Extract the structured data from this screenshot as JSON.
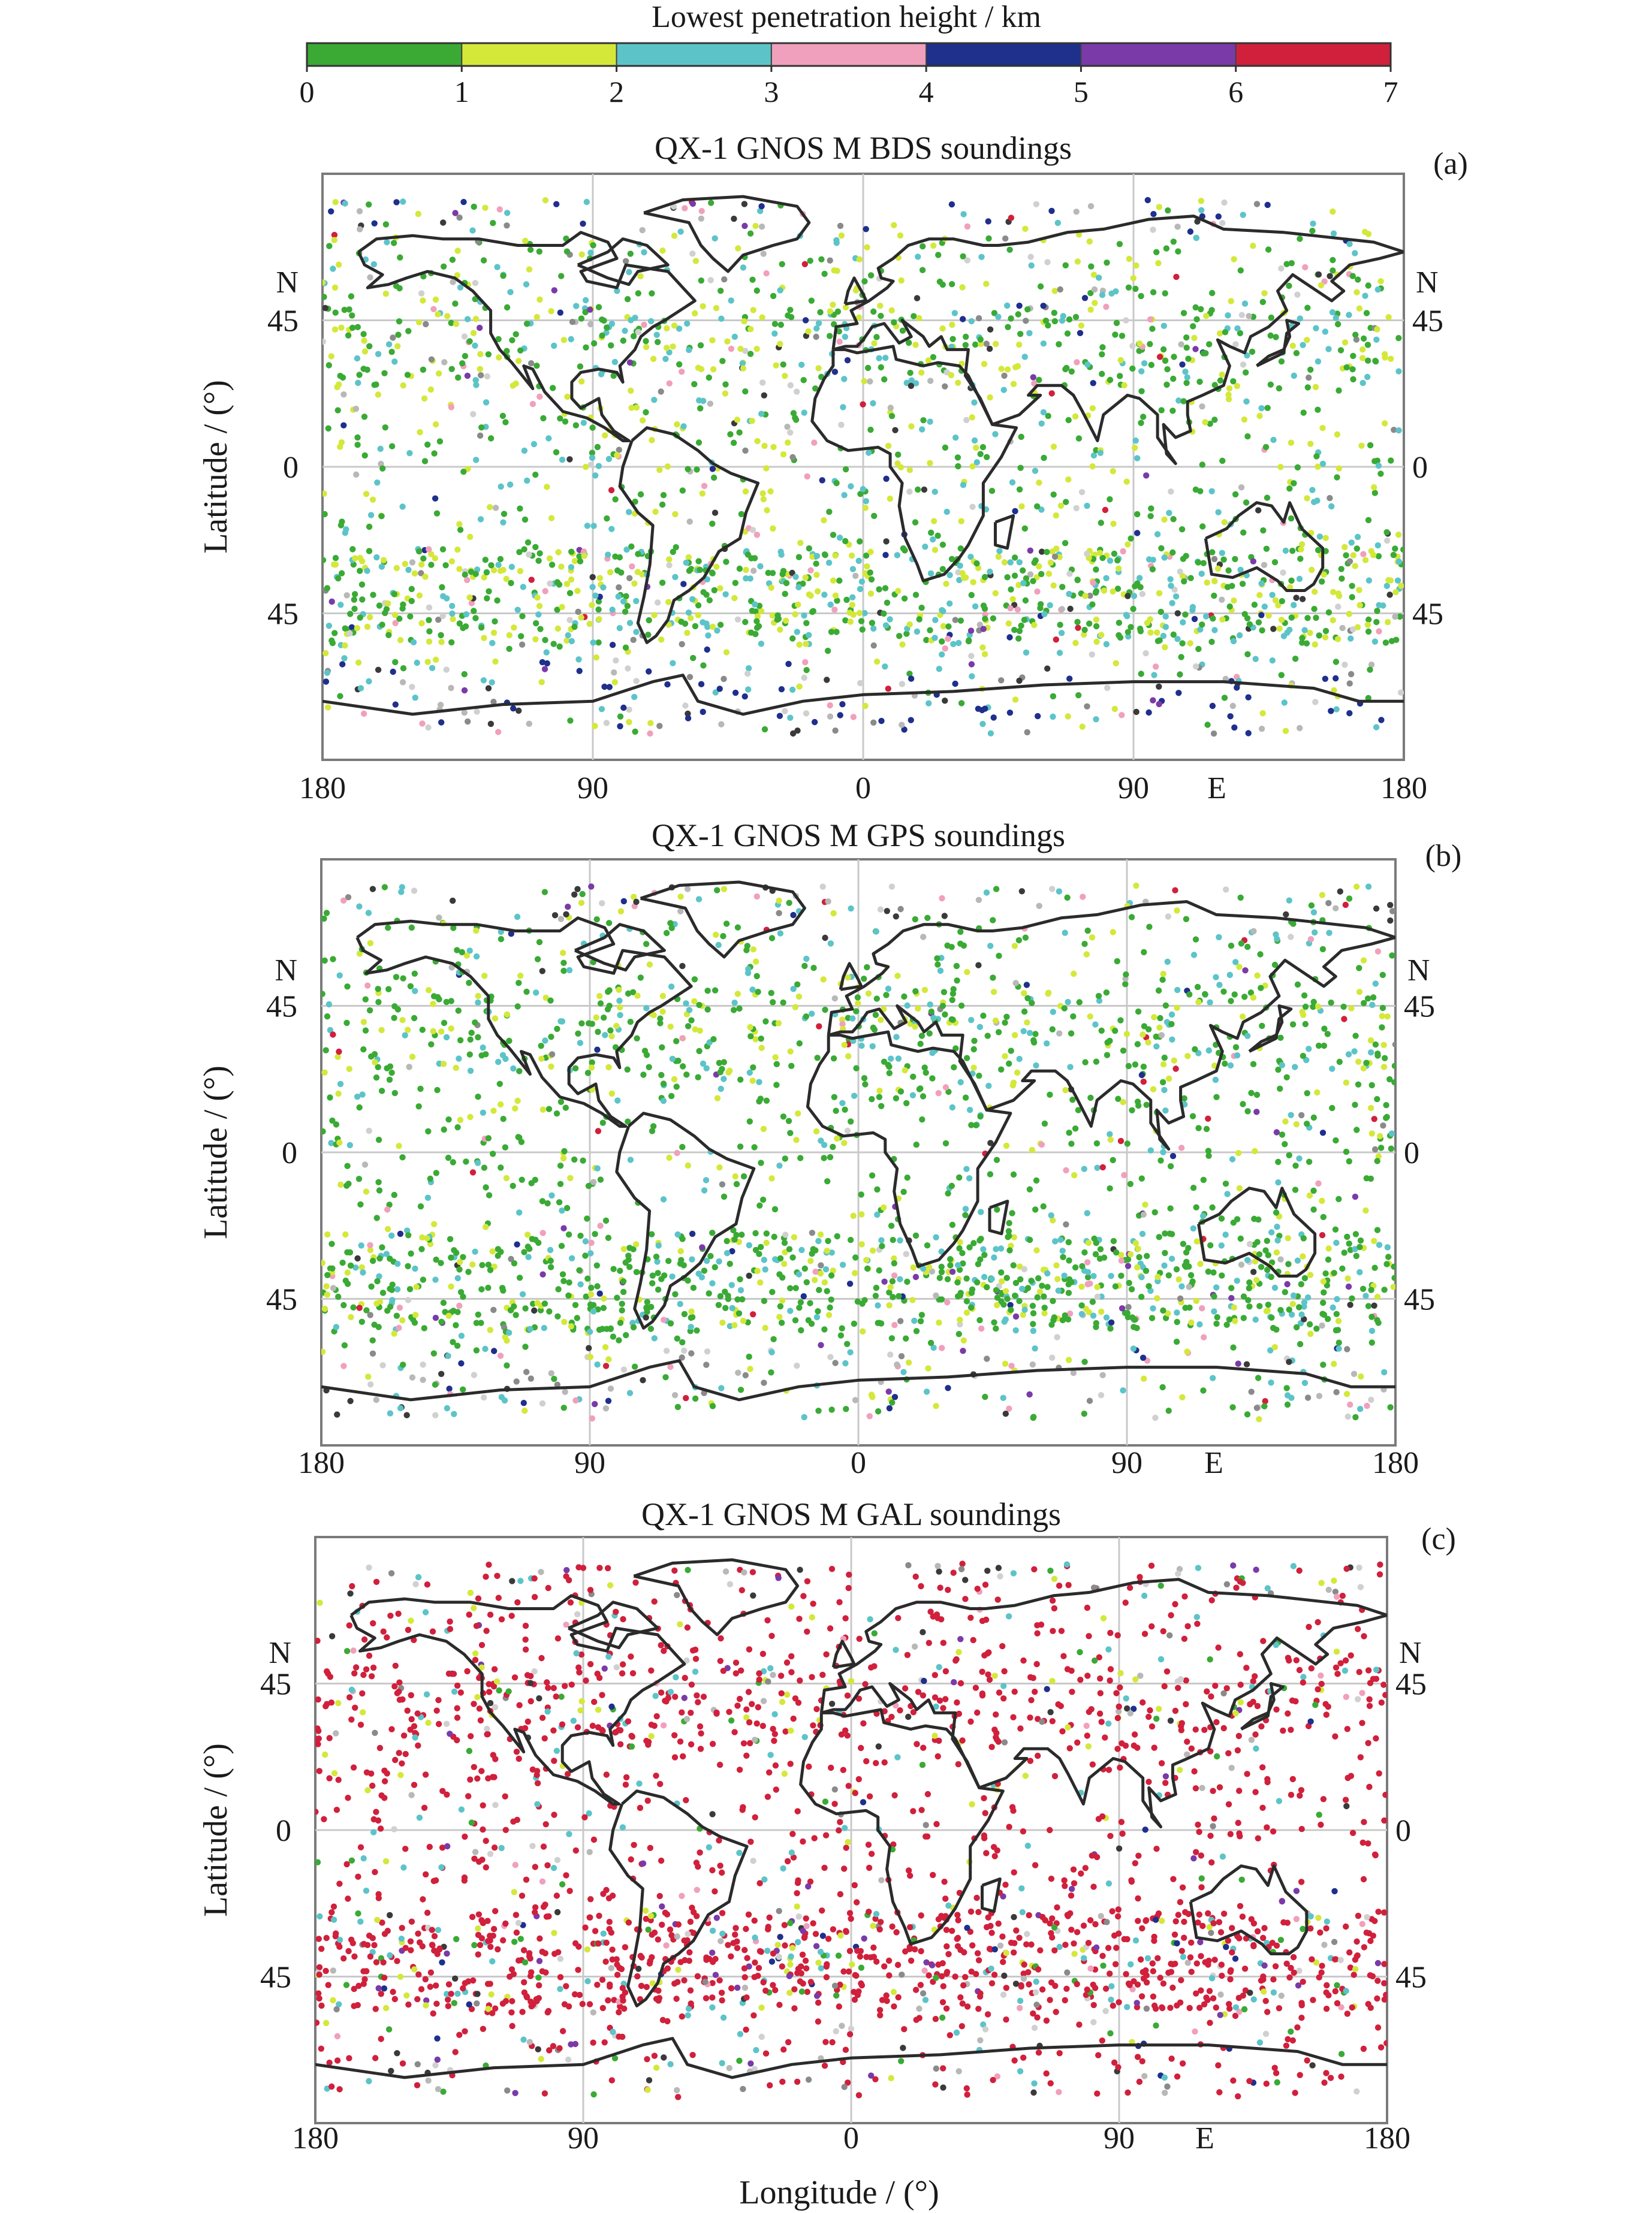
{
  "colorbar": {
    "title": "Lowest penetration height / km",
    "ticks": [
      "0",
      "1",
      "2",
      "3",
      "4",
      "5",
      "6",
      "7"
    ],
    "bins": [
      {
        "range": [
          0,
          1
        ],
        "color": "#3aaa35"
      },
      {
        "range": [
          1,
          2
        ],
        "color": "#d4e83a"
      },
      {
        "range": [
          2,
          3
        ],
        "color": "#5cc4c9"
      },
      {
        "range": [
          3,
          4
        ],
        "color": "#f0a0bc"
      },
      {
        "range": [
          4,
          5
        ],
        "color": "#1f2f8c"
      },
      {
        "range": [
          5,
          6
        ],
        "color": "#7a3aa8"
      },
      {
        "range": [
          6,
          7
        ],
        "color": "#d0203c"
      }
    ]
  },
  "axis_labels": {
    "x_title": "Longitude / (°)",
    "y_title": "Latitude / (°)",
    "x_ticks": [
      "180",
      "90",
      "0",
      "90",
      "180"
    ],
    "x_hemisphere": "E",
    "y_ticks": [
      "45",
      "0",
      "45"
    ],
    "y_hemisphere": "N"
  },
  "panels": [
    {
      "label": "(a)",
      "title": "QX-1 GNOS M BDS soundings",
      "system": "BDS",
      "dominant_height_km": "0-2 (green/yellow), with 4-5 (dark blue) points near Antarctica"
    },
    {
      "label": "(b)",
      "title": "QX-1 GNOS M GPS soundings",
      "system": "GPS",
      "dominant_height_km": "0-1 (green) over oceans, mixed 1-3 elsewhere"
    },
    {
      "label": "(c)",
      "title": "QX-1 GNOS M GAL soundings",
      "system": "GAL",
      "dominant_height_km": "6-7 (red) dominant, scattered 1-4"
    }
  ],
  "chart_data": {
    "type": "scatter",
    "map_projection": "equirectangular",
    "lon_range": [
      -180,
      180
    ],
    "lat_range": [
      -90,
      90
    ],
    "color_scale_km": [
      0,
      7
    ],
    "grid": true,
    "legend_placement": "top"
  }
}
